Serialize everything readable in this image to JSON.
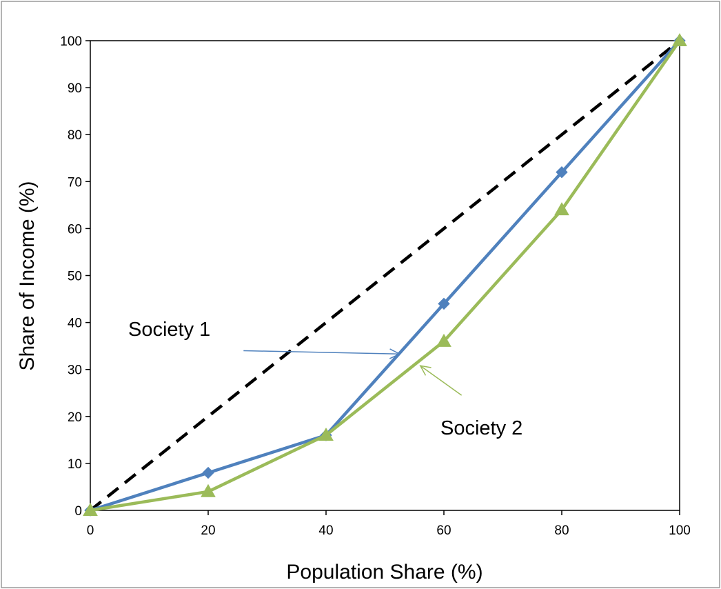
{
  "chart_data": {
    "type": "line",
    "xlabel": "Population Share (%)",
    "ylabel": "Share of Income (%)",
    "xlim": [
      0,
      100
    ],
    "ylim": [
      0,
      100
    ],
    "x_ticks": [
      0,
      20,
      40,
      60,
      80,
      100
    ],
    "y_ticks": [
      0,
      10,
      20,
      30,
      40,
      50,
      60,
      70,
      80,
      90,
      100
    ],
    "grid": false,
    "legend": "none",
    "series": [
      {
        "key": "equality",
        "x": [
          0,
          100
        ],
        "y": [
          0,
          100
        ],
        "color": "#000000",
        "style": "dashed",
        "marker": "none"
      },
      {
        "key": "society1",
        "x": [
          0,
          20,
          40,
          60,
          80,
          100
        ],
        "y": [
          0,
          8,
          16,
          44,
          72,
          100
        ],
        "color": "#4F81BD",
        "style": "solid",
        "marker": "diamond"
      },
      {
        "key": "society2",
        "x": [
          0,
          20,
          40,
          60,
          80,
          100
        ],
        "y": [
          0,
          4,
          16,
          36,
          64,
          100
        ],
        "color": "#9BBB59",
        "style": "solid",
        "marker": "triangle"
      }
    ],
    "annotations": [
      {
        "text": "Society 1",
        "color": "#4F81BD",
        "arrow_from": [
          26,
          34
        ],
        "arrow_to": [
          52.5,
          33.3
        ]
      },
      {
        "text": "Society 2",
        "color": "#9BBB59",
        "arrow_from": [
          63,
          24.5
        ],
        "arrow_to": [
          56,
          30.8
        ]
      }
    ]
  }
}
